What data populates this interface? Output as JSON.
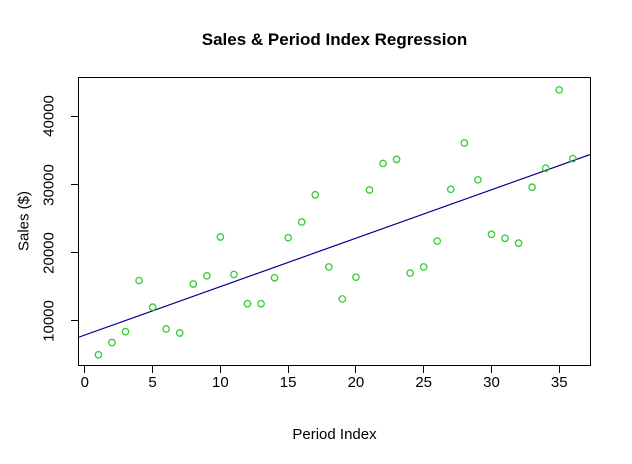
{
  "figure": {
    "background": "#FFFFFF",
    "text_color": "#000000",
    "axis_color": "#000000"
  },
  "chart_data": {
    "type": "scatter",
    "title": "Sales & Period Index Regression",
    "xlabel": "Period Index",
    "ylabel": "Sales ($)",
    "x_ticks": [
      0,
      5,
      10,
      15,
      20,
      25,
      30,
      35
    ],
    "y_ticks": [
      10000,
      20000,
      30000,
      40000
    ],
    "xlim": [
      -0.43,
      37.27
    ],
    "ylim": [
      3500,
      45650
    ],
    "grid": false,
    "point_style": {
      "shape": "open-circle",
      "color": "#33CC33",
      "radius": 3.2,
      "stroke_width": 1.3
    },
    "regression_line": {
      "slope": 711,
      "intercept": 7900,
      "color": "#00008B",
      "width": 1.2
    },
    "points": [
      [
        1,
        5000
      ],
      [
        2,
        6800
      ],
      [
        3,
        8400
      ],
      [
        4,
        15900
      ],
      [
        5,
        12000
      ],
      [
        6,
        8800
      ],
      [
        7,
        8200
      ],
      [
        8,
        15400
      ],
      [
        9,
        16600
      ],
      [
        10,
        22300
      ],
      [
        11,
        16800
      ],
      [
        12,
        12500
      ],
      [
        13,
        12500
      ],
      [
        14,
        16300
      ],
      [
        15,
        22200
      ],
      [
        16,
        24500
      ],
      [
        17,
        28500
      ],
      [
        18,
        17900
      ],
      [
        19,
        13200
      ],
      [
        20,
        16400
      ],
      [
        21,
        29200
      ],
      [
        22,
        33100
      ],
      [
        23,
        33700
      ],
      [
        24,
        17000
      ],
      [
        25,
        17900
      ],
      [
        26,
        21700
      ],
      [
        27,
        29300
      ],
      [
        28,
        36100
      ],
      [
        29,
        30700
      ],
      [
        30,
        22700
      ],
      [
        31,
        22100
      ],
      [
        32,
        21400
      ],
      [
        33,
        29600
      ],
      [
        34,
        32400
      ],
      [
        35,
        43900
      ],
      [
        36,
        33800
      ]
    ]
  }
}
